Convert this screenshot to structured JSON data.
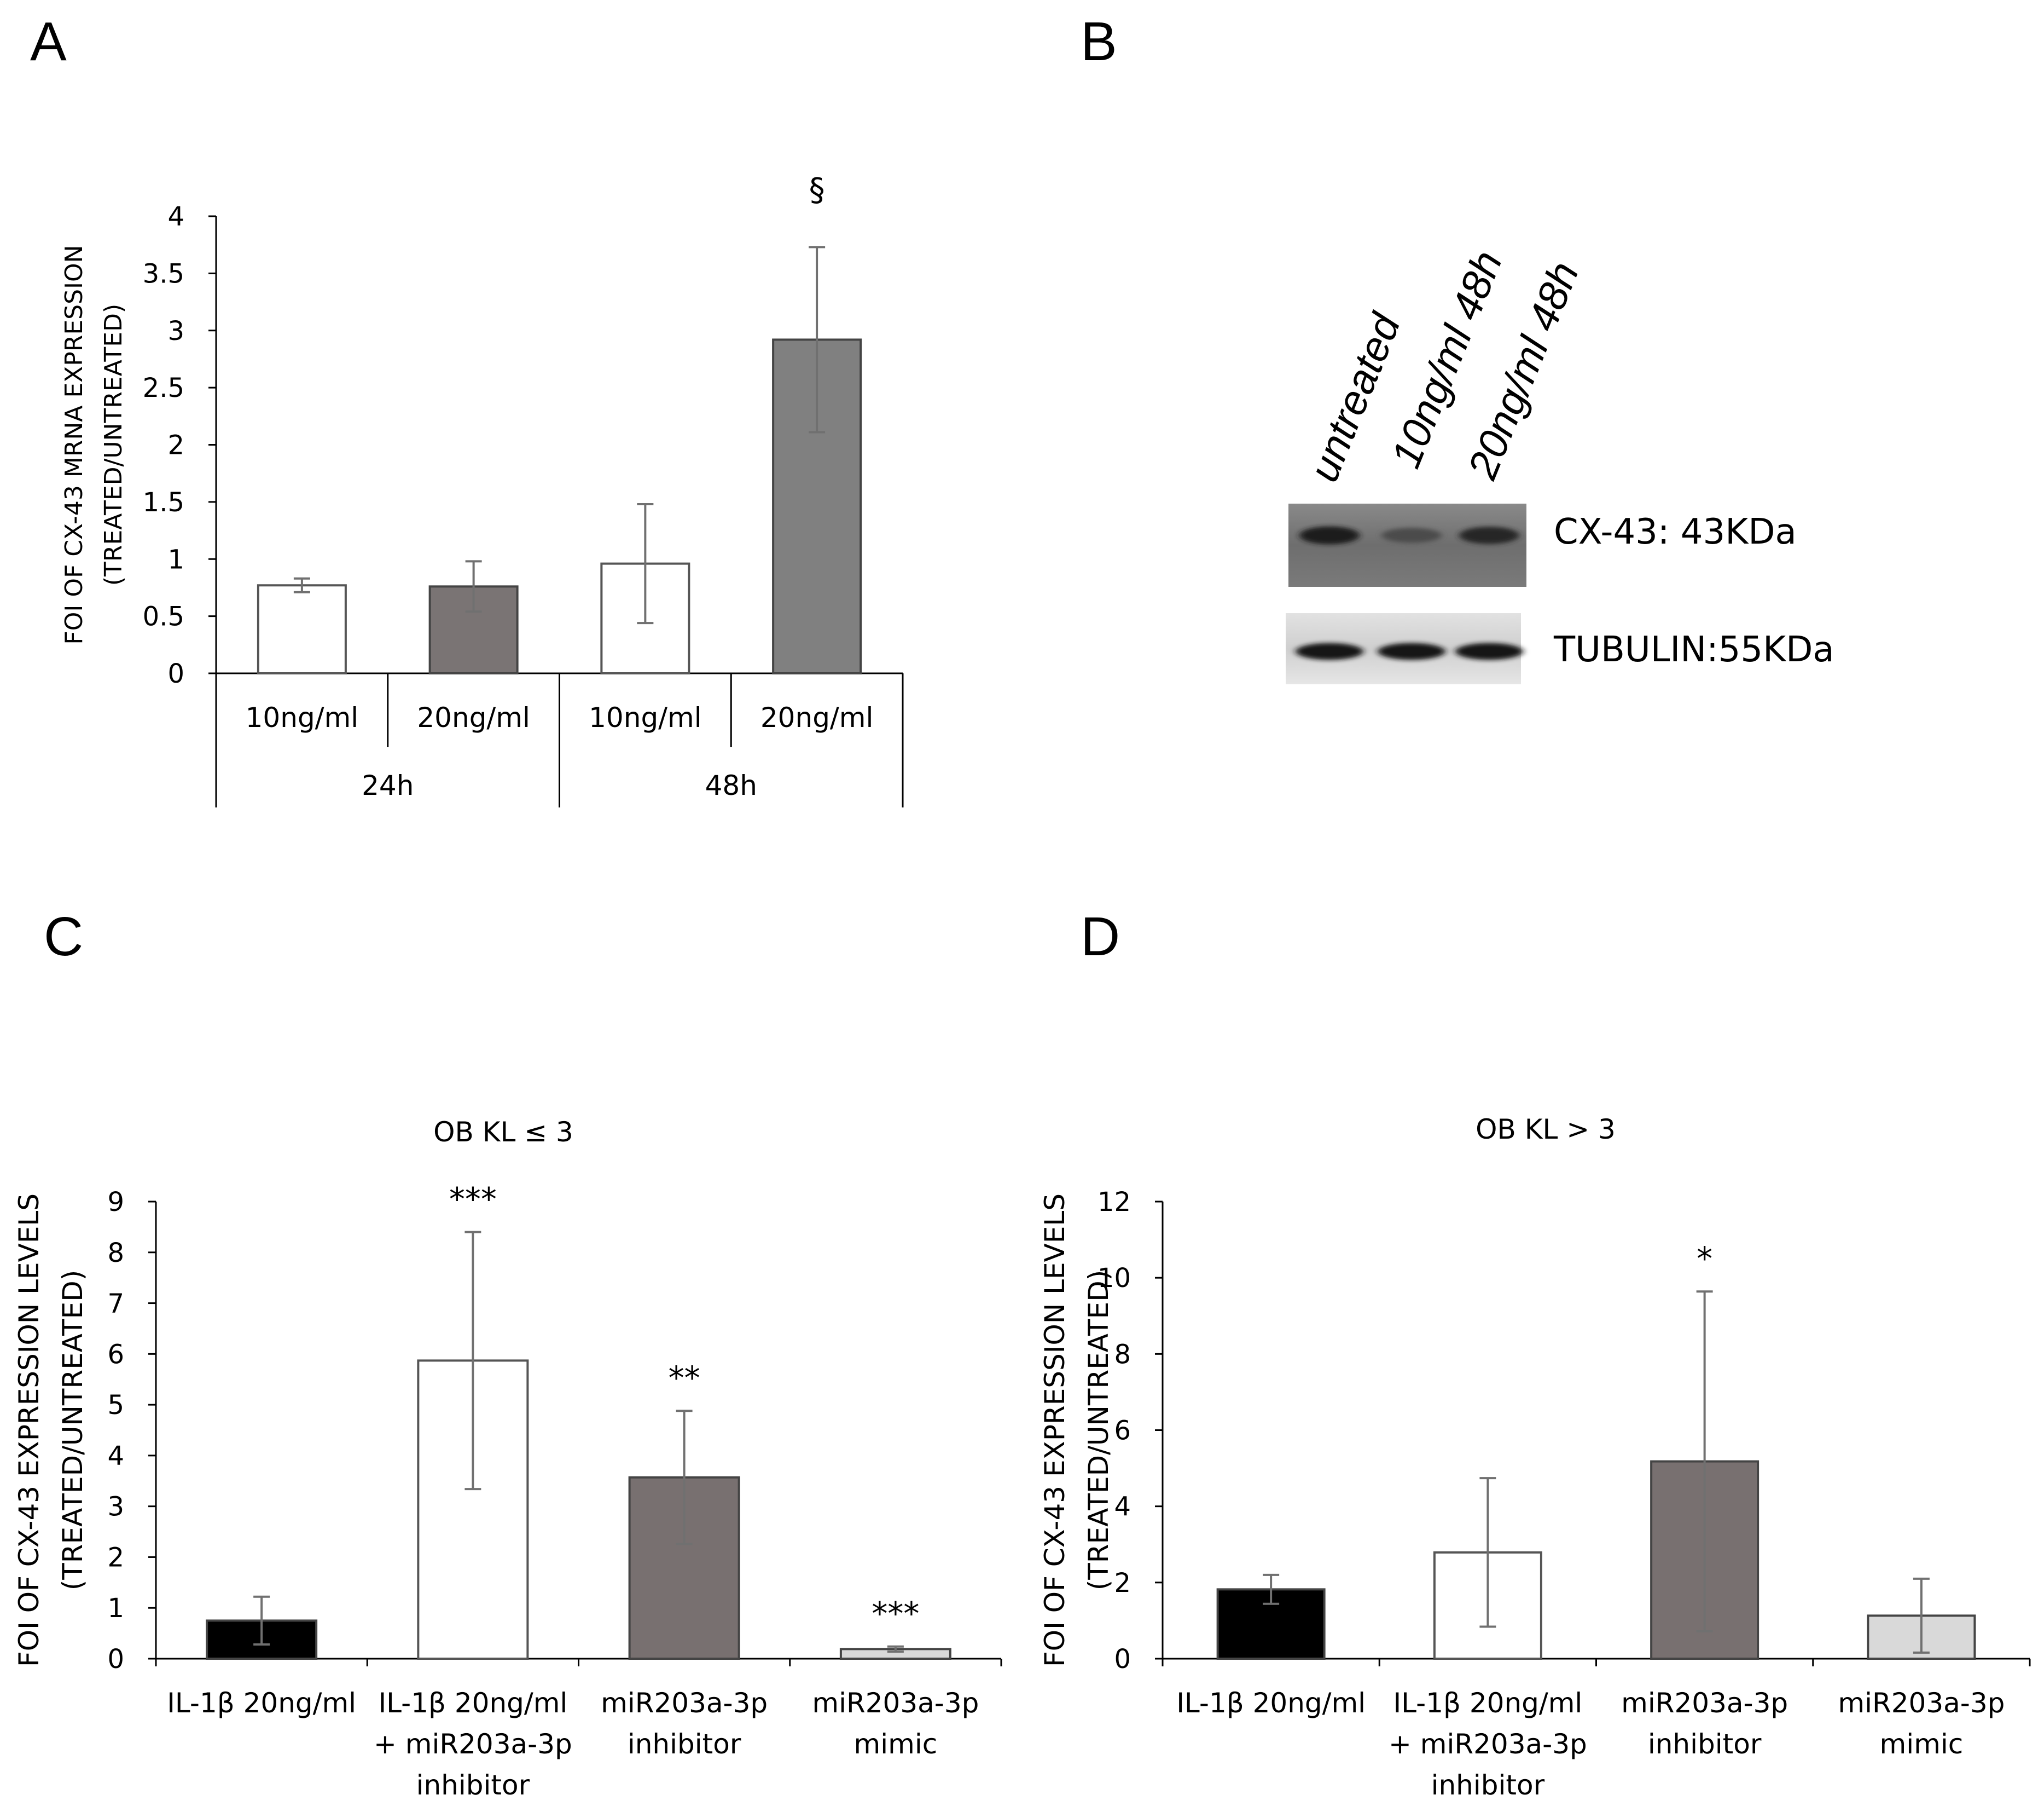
{
  "panels": {
    "a": "A",
    "b": "B",
    "c": "C",
    "d": "D"
  },
  "chart_data": [
    {
      "id": "A",
      "type": "bar",
      "title": "",
      "ylabel_line1": "FOI OF CX-43 MRNA EXPRESSION",
      "ylabel_line2": "(TREATED/UNTREATED)",
      "ylim": [
        0,
        4
      ],
      "yticks": [
        "0",
        "0.5",
        "1",
        "1.5",
        "2",
        "2.5",
        "3",
        "3.5",
        "4"
      ],
      "categories": [
        "10ng/ml",
        "20ng/ml",
        "10ng/ml",
        "20ng/ml"
      ],
      "groups": [
        "24h",
        "48h"
      ],
      "values": [
        0.77,
        0.76,
        0.96,
        2.92
      ],
      "errors": [
        0.06,
        0.22,
        0.52,
        0.81
      ],
      "colors": [
        "#ffffff",
        "#7a7474",
        "#ffffff",
        "#808080"
      ],
      "annotations": [
        "",
        "",
        "",
        "§"
      ]
    },
    {
      "id": "C",
      "type": "bar",
      "title": "OB KL ≤ 3",
      "ylabel_line1": "FOI OF CX-43 EXPRESSION LEVELS",
      "ylabel_line2": "(TREATED/UNTREATED)",
      "ylim": [
        0,
        9
      ],
      "yticks": [
        "0",
        "1",
        "2",
        "3",
        "4",
        "5",
        "6",
        "7",
        "8",
        "9"
      ],
      "categories": [
        [
          "IL-1β 20ng/ml"
        ],
        [
          "IL-1β 20ng/ml",
          "+ miR203a-3p",
          "inhibitor"
        ],
        [
          "miR203a-3p",
          "inhibitor"
        ],
        [
          "miR203a-3p",
          "mimic"
        ]
      ],
      "values": [
        0.75,
        5.87,
        3.57,
        0.19
      ],
      "errors": [
        0.47,
        2.53,
        1.31,
        0.05
      ],
      "colors": [
        "#000000",
        "#ffffff",
        "#787070",
        "#d9d9d9"
      ],
      "annotations": [
        "",
        "***",
        "**",
        "***"
      ]
    },
    {
      "id": "D",
      "type": "bar",
      "title": "OB KL > 3",
      "ylabel_line1": "FOI OF CX-43 EXPRESSION LEVELS",
      "ylabel_line2": "(TREATED/UNTREATED)",
      "ylim": [
        0,
        12
      ],
      "yticks": [
        "0",
        "2",
        "4",
        "6",
        "8",
        "10",
        "12"
      ],
      "categories": [
        [
          "IL-1β 20ng/ml"
        ],
        [
          "IL-1β 20ng/ml",
          "+ miR203a-3p",
          "inhibitor"
        ],
        [
          "miR203a-3p",
          "inhibitor"
        ],
        [
          "miR203a-3p",
          "mimic"
        ]
      ],
      "values": [
        1.82,
        2.79,
        5.18,
        1.13
      ],
      "errors": [
        0.38,
        1.95,
        4.46,
        0.97
      ],
      "colors": [
        "#000000",
        "#ffffff",
        "#787070",
        "#d9d9d9"
      ],
      "annotations": [
        "",
        "",
        "*",
        ""
      ]
    }
  ],
  "blot": {
    "lanes": [
      "untreated",
      "10ng/ml 48h",
      "20ng/ml 48h"
    ],
    "bands": [
      {
        "label": "CX-43: 43KDa",
        "intensity": [
          0.9,
          0.45,
          0.8
        ]
      },
      {
        "label": "TUBULIN:55KDa",
        "intensity": [
          0.9,
          0.9,
          0.9
        ]
      }
    ]
  }
}
